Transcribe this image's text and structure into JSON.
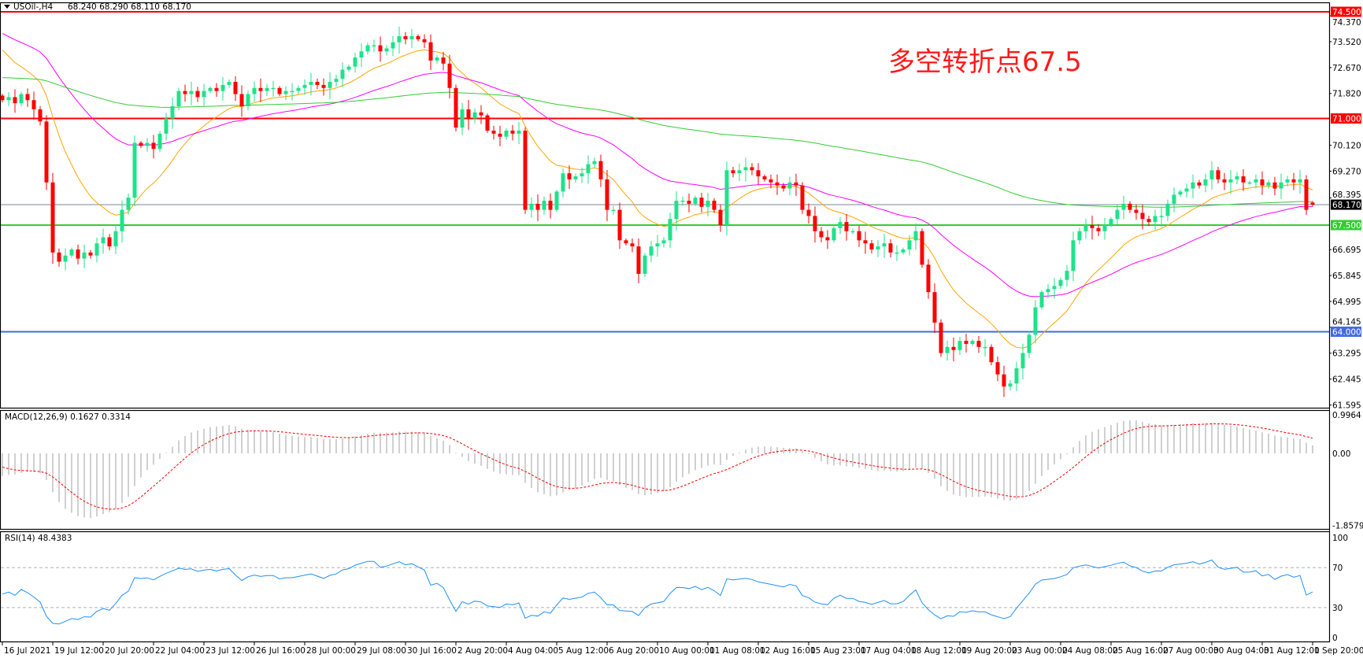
{
  "header": {
    "symbol": "USOil-,H4",
    "ohlc": "68.240 68.290 68.110 68.170",
    "menu_icon": "triangle-down-icon"
  },
  "annotation": "多空转折点67.5",
  "colors": {
    "bull": "#1de38a",
    "bear": "#ff0000",
    "ma_fast": "#ffa500",
    "ma_mid": "#ff00ff",
    "ma_slow": "#32cd32",
    "macd_hist": "#c0c0c0",
    "macd_signal": "#ff0000",
    "rsi": "#1e90ff",
    "current_price_line": "#778899"
  },
  "chart_data": {
    "type": "candlestick",
    "title": "USOil-,H4",
    "last_bar": {
      "open": 68.24,
      "high": 68.29,
      "low": 68.11,
      "close": 68.17
    },
    "close": [
      71.6,
      71.7,
      71.5,
      71.8,
      71.6,
      71.3,
      70.9,
      68.9,
      66.6,
      66.3,
      66.5,
      66.7,
      66.4,
      66.6,
      66.5,
      66.9,
      67.1,
      66.8,
      67.3,
      68.0,
      68.4,
      70.2,
      70.1,
      70.2,
      70.0,
      70.5,
      71.0,
      71.4,
      71.9,
      71.8,
      71.9,
      71.7,
      71.9,
      72.0,
      71.9,
      72.1,
      72.2,
      71.8,
      71.4,
      71.8,
      72.0,
      71.9,
      72.0,
      72.0,
      71.8,
      71.9,
      71.9,
      72.0,
      72.1,
      72.2,
      72.1,
      72.0,
      72.2,
      72.3,
      72.6,
      72.7,
      73.0,
      73.2,
      73.4,
      73.4,
      73.2,
      73.3,
      73.5,
      73.7,
      73.6,
      73.7,
      73.6,
      73.5,
      72.9,
      73.0,
      72.8,
      72.0,
      70.7,
      71.3,
      71.0,
      71.2,
      71.1,
      70.6,
      70.5,
      70.4,
      70.6,
      70.5,
      70.6,
      68.0,
      68.2,
      68.0,
      68.3,
      68.0,
      68.6,
      69.2,
      69.0,
      69.1,
      69.2,
      69.5,
      69.6,
      69.0,
      68.0,
      68.0,
      67.0,
      66.9,
      66.8,
      65.9,
      66.5,
      66.8,
      66.9,
      67.0,
      67.7,
      68.3,
      68.3,
      68.2,
      68.4,
      68.1,
      68.3,
      68.0,
      67.5,
      69.3,
      69.2,
      69.3,
      69.4,
      69.3,
      69.1,
      69.0,
      68.9,
      68.8,
      68.7,
      68.9,
      68.8,
      68.0,
      67.8,
      67.3,
      67.1,
      67.0,
      67.4,
      67.6,
      67.3,
      67.3,
      67.0,
      66.9,
      66.7,
      66.8,
      66.9,
      66.6,
      66.6,
      66.7,
      67.0,
      67.3,
      66.2,
      65.3,
      64.3,
      63.3,
      63.5,
      63.4,
      63.7,
      63.6,
      63.7,
      63.5,
      63.5,
      63.0,
      62.6,
      62.2,
      62.3,
      62.8,
      63.3,
      63.9,
      64.8,
      65.3,
      65.4,
      65.5,
      65.7,
      66.0,
      67.0,
      67.3,
      67.5,
      67.4,
      67.3,
      67.5,
      67.7,
      68.0,
      68.2,
      68.0,
      67.9,
      67.7,
      67.6,
      67.8,
      67.8,
      68.2,
      68.5,
      68.6,
      68.7,
      68.9,
      68.8,
      69.0,
      69.3,
      69.0,
      68.9,
      69.0,
      69.1,
      68.9,
      68.9,
      69.0,
      68.8,
      68.9,
      68.7,
      68.9,
      69.0,
      68.9,
      69.0,
      68.0,
      68.17
    ],
    "levels": [
      {
        "price": 74.5,
        "label": "74.500",
        "color": "#ff0000"
      },
      {
        "price": 71.0,
        "label": "71.000",
        "color": "#ff0000"
      },
      {
        "price": 67.5,
        "label": "67.500",
        "color": "#32cd32"
      },
      {
        "price": 64.0,
        "label": "64.000",
        "color": "#4169e1"
      },
      {
        "price": 68.17,
        "label": "68.170",
        "color": "#000000"
      }
    ],
    "y_ticks": [
      "74.370",
      "73.520",
      "72.670",
      "71.820",
      "70.120",
      "69.270",
      "68.395",
      "66.695",
      "65.845",
      "64.995",
      "64.145",
      "63.295",
      "62.445",
      "61.595"
    ],
    "ylim": [
      61.595,
      74.5
    ],
    "x_ticks": [
      "16 Jul 2021",
      "19 Jul 12:00",
      "20 Jul 20:00",
      "22 Jul 04:00",
      "23 Jul 12:00",
      "26 Jul 16:00",
      "28 Jul 00:00",
      "29 Jul 08:00",
      "30 Jul 16:00",
      "2 Aug 20:00",
      "4 Aug 04:00",
      "5 Aug 12:00",
      "6 Aug 20:00",
      "10 Aug 00:00",
      "11 Aug 08:00",
      "12 Aug 16:00",
      "15 Aug 23:00",
      "17 Aug 04:00",
      "18 Aug 12:00",
      "19 Aug 20:00",
      "23 Aug 00:00",
      "24 Aug 08:00",
      "25 Aug 16:00",
      "27 Aug 00:00",
      "30 Aug 04:00",
      "31 Aug 12:00",
      "1 Sep 20:00"
    ],
    "macd": {
      "label": "MACD(12,26,9) 0.1627 0.3314",
      "ticks": [
        "0.9964",
        "0.00",
        "-1.8579"
      ],
      "ylim": [
        -1.8579,
        0.9964
      ]
    },
    "rsi": {
      "label": "RSI(14) 48.4383",
      "ticks": [
        "100",
        "70",
        "30",
        "0"
      ],
      "levels": [
        70,
        30
      ],
      "ylim": [
        0,
        100
      ]
    }
  }
}
